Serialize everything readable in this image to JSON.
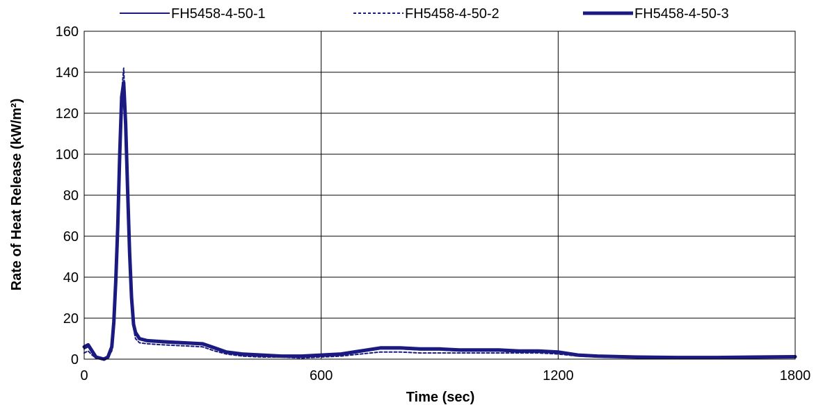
{
  "chart_data": {
    "type": "line",
    "title": "",
    "xlabel": "Time (sec)",
    "ylabel": "Rate of Heat Release (kW/m²)",
    "xlim": [
      0,
      1800
    ],
    "ylim": [
      0,
      160
    ],
    "xticks": [
      0,
      600,
      1200,
      1800
    ],
    "yticks": [
      0,
      20,
      40,
      60,
      80,
      100,
      120,
      140,
      160
    ],
    "grid": true,
    "legend_position": "top",
    "series": [
      {
        "name": "FH5458-4-50-1",
        "style": "solid-thin",
        "color": "#1a1a80",
        "x": [
          0,
          10,
          20,
          30,
          50,
          60,
          70,
          75,
          80,
          85,
          90,
          95,
          100,
          105,
          110,
          115,
          120,
          125,
          130,
          140,
          160,
          200,
          250,
          300,
          330,
          360,
          400,
          450,
          500,
          550,
          600,
          650,
          700,
          750,
          800,
          850,
          900,
          950,
          1000,
          1050,
          1100,
          1150,
          1200,
          1250,
          1300,
          1400,
          1500,
          1600,
          1700,
          1800
        ],
        "values": [
          5,
          6,
          3,
          1,
          0,
          1,
          5,
          15,
          35,
          60,
          95,
          125,
          128,
          110,
          80,
          50,
          28,
          16,
          12,
          10,
          9,
          8,
          7.5,
          7,
          5,
          3,
          2,
          1.5,
          1,
          1,
          1.5,
          2,
          3.5,
          5,
          5,
          4.5,
          4.5,
          4,
          4,
          4,
          3.5,
          3.5,
          3,
          2,
          1.5,
          1,
          0.8,
          0.8,
          1,
          1
        ]
      },
      {
        "name": "FH5458-4-50-2",
        "style": "dashed",
        "color": "#1a1a80",
        "x": [
          0,
          10,
          20,
          30,
          50,
          60,
          70,
          75,
          80,
          85,
          90,
          95,
          100,
          105,
          110,
          115,
          120,
          125,
          130,
          140,
          160,
          200,
          250,
          300,
          330,
          360,
          400,
          450,
          500,
          550,
          600,
          650,
          700,
          750,
          800,
          850,
          900,
          950,
          1000,
          1050,
          1100,
          1150,
          1200,
          1250,
          1300,
          1400,
          1500,
          1600,
          1700,
          1800
        ],
        "values": [
          3,
          4,
          2,
          0.5,
          0,
          0.5,
          4,
          12,
          30,
          55,
          90,
          130,
          142,
          120,
          85,
          52,
          27,
          15,
          10,
          8,
          7.5,
          7,
          6.5,
          6,
          4,
          2.5,
          1.5,
          1,
          1,
          0.5,
          1,
          1.5,
          2.5,
          3.5,
          3.5,
          3,
          3,
          3,
          3,
          3,
          3,
          3,
          2.5,
          1.5,
          1,
          0.8,
          0.5,
          0.5,
          0.8,
          0.8
        ]
      },
      {
        "name": "FH5458-4-50-3",
        "style": "solid-thick",
        "color": "#1a1a80",
        "x": [
          0,
          10,
          20,
          30,
          50,
          60,
          70,
          75,
          80,
          85,
          90,
          95,
          100,
          105,
          110,
          115,
          120,
          125,
          130,
          140,
          160,
          200,
          250,
          300,
          330,
          360,
          400,
          450,
          500,
          550,
          600,
          650,
          700,
          750,
          800,
          850,
          900,
          950,
          1000,
          1050,
          1100,
          1150,
          1200,
          1250,
          1300,
          1400,
          1500,
          1600,
          1700,
          1800
        ],
        "values": [
          6,
          7,
          4,
          1,
          0,
          1,
          6,
          18,
          38,
          65,
          100,
          128,
          135,
          115,
          82,
          52,
          30,
          17,
          13,
          10,
          9,
          8.5,
          8,
          7.5,
          5.5,
          3.5,
          2.5,
          2,
          1.5,
          1.5,
          2,
          2.5,
          4,
          5.5,
          5.5,
          5,
          5,
          4.5,
          4.5,
          4.5,
          4,
          4,
          3.5,
          2,
          1.5,
          1,
          0.8,
          0.8,
          1,
          1.2
        ]
      }
    ]
  }
}
